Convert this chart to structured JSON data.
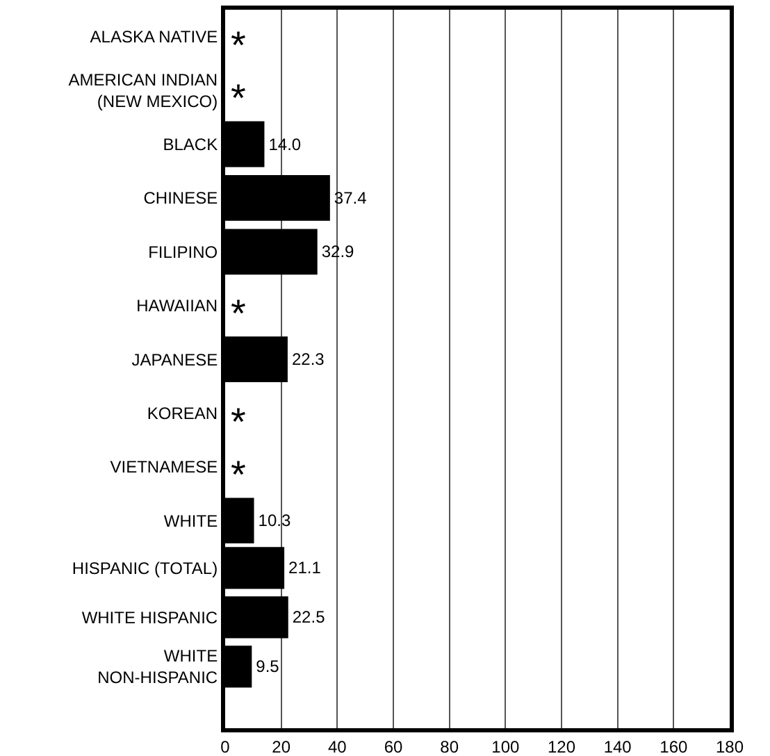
{
  "chart_data": [
    {
      "type": "bar",
      "orientation": "horizontal",
      "categories": [
        "ALASKA NATIVE",
        "AMERICAN INDIAN\n(NEW MEXICO)",
        "BLACK",
        "CHINESE",
        "FILIPINO",
        "HAWAIIAN",
        "JAPANESE",
        "KOREAN",
        "VIETNAMESE",
        "WHITE"
      ],
      "values": [
        null,
        null,
        14.0,
        37.4,
        32.9,
        null,
        22.3,
        null,
        null,
        10.3
      ],
      "value_labels": [
        null,
        null,
        "14.0",
        "37.4",
        "32.9",
        null,
        "22.3",
        null,
        null,
        "10.3"
      ],
      "color": "#000000",
      "xlim": [
        0,
        180
      ],
      "xticks": [
        0,
        20,
        40,
        60,
        80,
        100,
        120,
        140,
        160,
        180
      ],
      "grid": "x",
      "tick_labels": "y",
      "annotations": [
        "*",
        "*",
        "*",
        "*",
        "*"
      ]
    },
    {
      "type": "bar",
      "orientation": "horizontal",
      "categories": [
        "HISPANIC (TOTAL)",
        "WHITE HISPANIC",
        "WHITE\nNON-HISPANIC"
      ],
      "values": [
        21.1,
        22.5,
        9.5
      ],
      "value_labels": [
        "21.1",
        "22.5",
        "9.5"
      ],
      "color": "#000000",
      "xlim": [
        0,
        180
      ],
      "xticks": [
        0,
        20,
        40,
        60,
        80,
        100,
        120,
        140,
        160,
        180
      ],
      "grid": "x"
    }
  ]
}
